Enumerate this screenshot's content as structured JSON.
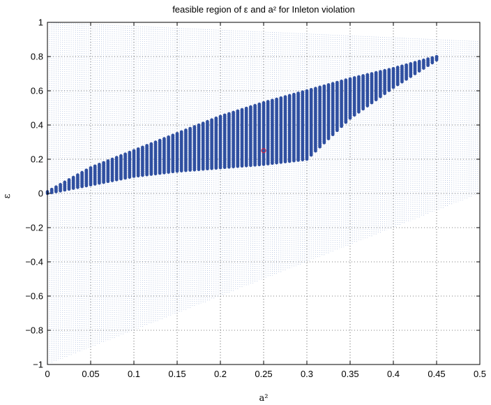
{
  "chart_data": {
    "type": "scatter",
    "title": "feasible region of ε and a² for Inleton violation",
    "xlabel": "a²",
    "ylabel": "ε",
    "xlim": [
      0,
      0.5
    ],
    "ylim": [
      -1,
      1
    ],
    "x_ticks": [
      0,
      0.05,
      0.1,
      0.15,
      0.2,
      0.25,
      0.3,
      0.35,
      0.4,
      0.45,
      0.5
    ],
    "x_tick_labels": [
      "0",
      "0.05",
      "0.1",
      "0.15",
      "0.2",
      "0.25",
      "0.3",
      "0.35",
      "0.4",
      "0.45",
      "0.5"
    ],
    "y_ticks": [
      -1,
      -0.8,
      -0.6,
      -0.4,
      -0.2,
      0,
      0.2,
      0.4,
      0.6,
      0.8,
      1
    ],
    "y_tick_labels": [
      "−1",
      "−0.8",
      "−0.6",
      "−0.4",
      "−0.2",
      "0",
      "0.2",
      "0.4",
      "0.6",
      "0.8",
      "1"
    ],
    "grid": true,
    "series": [
      {
        "role": "background-samples",
        "color": "#4a6fb5",
        "region": "epsilon between -1 + 2*a2 and 1 - 0.222*a2, a2 from 0 to 0.5",
        "style": "light dotted"
      },
      {
        "role": "feasible-region",
        "color": "#2f4fa0",
        "boundary_upper": [
          [
            0,
            0.01
          ],
          [
            0.05,
            0.15
          ],
          [
            0.1,
            0.25
          ],
          [
            0.15,
            0.35
          ],
          [
            0.2,
            0.45
          ],
          [
            0.25,
            0.53
          ],
          [
            0.3,
            0.6
          ],
          [
            0.35,
            0.67
          ],
          [
            0.4,
            0.73
          ],
          [
            0.45,
            0.8
          ]
        ],
        "boundary_lower": [
          [
            0,
            0.0
          ],
          [
            0.05,
            0.05
          ],
          [
            0.1,
            0.1
          ],
          [
            0.15,
            0.13
          ],
          [
            0.2,
            0.15
          ],
          [
            0.25,
            0.17
          ],
          [
            0.3,
            0.2
          ],
          [
            0.35,
            0.44
          ],
          [
            0.4,
            0.62
          ],
          [
            0.45,
            0.78
          ]
        ]
      },
      {
        "role": "marker",
        "color": "#cc2244",
        "points": [
          [
            0.25,
            0.25
          ]
        ]
      }
    ]
  }
}
